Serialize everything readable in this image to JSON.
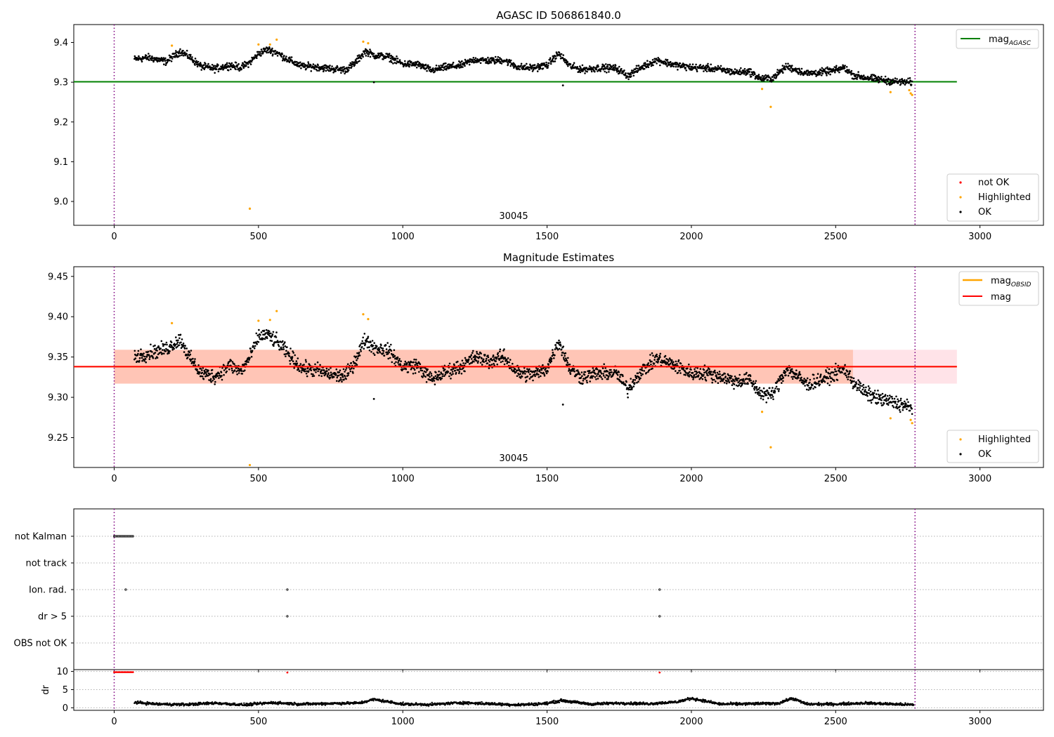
{
  "chart_data": [
    {
      "type": "scatter",
      "title": "AGASC ID 506861840.0",
      "xlim": [
        -140,
        3220
      ],
      "ylim": [
        8.94,
        9.445
      ],
      "xticks": [
        0,
        500,
        1000,
        1500,
        2000,
        2500,
        3000
      ],
      "yticks": [
        9.0,
        9.1,
        9.2,
        9.3,
        9.4
      ],
      "ytick_labels": [
        "9.0",
        "9.1",
        "9.2",
        "9.3",
        "9.4"
      ],
      "annotation": "30045",
      "annotation_x": 1380,
      "vlines": [
        0,
        2775
      ],
      "hline": {
        "name": "mag_AGASC",
        "y": 9.301,
        "x": [
          0,
          2920
        ],
        "color": "#008000"
      },
      "legend_upper": {
        "location": "upper right",
        "entries": [
          {
            "label": "mag",
            "subscript": "AGASC",
            "color": "#008000"
          }
        ]
      },
      "legend_lower": {
        "location": "lower right",
        "entries": [
          {
            "label": "not OK",
            "color": "#ff0000"
          },
          {
            "label": "Highlighted",
            "color": "#ffa500"
          },
          {
            "label": "OK",
            "color": "#000000"
          }
        ]
      },
      "series": [
        {
          "name": "OK",
          "color": "#000000",
          "x": [
            70,
            120,
            180,
            230,
            260,
            300,
            350,
            400,
            440,
            470,
            500,
            530,
            560,
            600,
            650,
            700,
            750,
            800,
            830,
            870,
            900,
            950,
            1000,
            1050,
            1100,
            1150,
            1200,
            1250,
            1300,
            1350,
            1400,
            1450,
            1500,
            1540,
            1580,
            1620,
            1680,
            1740,
            1780,
            1820,
            1880,
            1940,
            2000,
            2050,
            2100,
            2150,
            2200,
            2240,
            2280,
            2330,
            2360,
            2400,
            2450,
            2500,
            2530,
            2560,
            2600,
            2650,
            2700,
            2740,
            2765
          ],
          "y": [
            9.358,
            9.362,
            9.352,
            9.378,
            9.364,
            9.34,
            9.334,
            9.343,
            9.337,
            9.35,
            9.372,
            9.382,
            9.376,
            9.358,
            9.34,
            9.339,
            9.334,
            9.331,
            9.345,
            9.378,
            9.368,
            9.364,
            9.346,
            9.345,
            9.33,
            9.338,
            9.342,
            9.357,
            9.354,
            9.356,
            9.338,
            9.336,
            9.343,
            9.372,
            9.34,
            9.332,
            9.336,
            9.335,
            9.316,
            9.335,
            9.356,
            9.344,
            9.337,
            9.336,
            9.332,
            9.325,
            9.327,
            9.309,
            9.31,
            9.34,
            9.332,
            9.322,
            9.325,
            9.33,
            9.337,
            9.318,
            9.312,
            9.307,
            9.302,
            9.3,
            9.3
          ],
          "isolated_points": [
            {
              "x": 470,
              "y": 8.982
            },
            {
              "x": 900,
              "y": 9.3
            },
            {
              "x": 1555,
              "y": 9.292
            }
          ]
        },
        {
          "name": "Highlighted",
          "color": "#ffa500",
          "points": [
            {
              "x": 470,
              "y": 8.982
            },
            {
              "x": 500,
              "y": 9.395
            },
            {
              "x": 540,
              "y": 9.395
            },
            {
              "x": 563,
              "y": 9.407
            },
            {
              "x": 863,
              "y": 9.402
            },
            {
              "x": 880,
              "y": 9.398
            },
            {
              "x": 200,
              "y": 9.392
            },
            {
              "x": 2245,
              "y": 9.283
            },
            {
              "x": 2275,
              "y": 9.238
            },
            {
              "x": 2690,
              "y": 9.275
            },
            {
              "x": 2755,
              "y": 9.28
            },
            {
              "x": 2760,
              "y": 9.272
            },
            {
              "x": 2765,
              "y": 9.268
            }
          ]
        }
      ]
    },
    {
      "type": "scatter",
      "title": "Magnitude Estimates",
      "xlim": [
        -140,
        3220
      ],
      "ylim": [
        9.213,
        9.462
      ],
      "xticks": [
        0,
        500,
        1000,
        1500,
        2000,
        2500,
        3000
      ],
      "yticks": [
        9.25,
        9.3,
        9.35,
        9.4,
        9.45
      ],
      "ytick_labels": [
        "9.25",
        "9.30",
        "9.35",
        "9.40",
        "9.45"
      ],
      "annotation": "30045",
      "annotation_x": 1380,
      "vlines": [
        0,
        2775
      ],
      "bands": [
        {
          "name": "mag band",
          "x": [
            0,
            2920
          ],
          "y": [
            9.317,
            9.359
          ],
          "color": "#ffc0cb"
        },
        {
          "name": "mag_OBSID band",
          "x": [
            0,
            2560
          ],
          "y": [
            9.317,
            9.359
          ],
          "color": "#ffa07a"
        }
      ],
      "hlines": [
        {
          "name": "mag_OBSID",
          "y": 9.338,
          "x": [
            0,
            2920
          ],
          "color": "#ffa500"
        },
        {
          "name": "mag",
          "y": 9.338,
          "x": [
            0,
            2920
          ],
          "color": "#ff0000"
        }
      ],
      "legend_upper": {
        "location": "upper right",
        "entries": [
          {
            "label": "mag",
            "subscript": "OBSID",
            "color": "#ffa500"
          },
          {
            "label": "mag",
            "color": "#ff0000"
          }
        ]
      },
      "legend_lower": {
        "location": "lower right",
        "entries": [
          {
            "label": "Highlighted",
            "color": "#ffa500"
          },
          {
            "label": "OK",
            "color": "#000000"
          }
        ]
      },
      "series": [
        {
          "name": "OK",
          "color": "#000000",
          "x": [
            70,
            120,
            180,
            230,
            260,
            300,
            350,
            400,
            440,
            470,
            500,
            530,
            560,
            600,
            650,
            700,
            750,
            800,
            830,
            870,
            900,
            950,
            1000,
            1050,
            1100,
            1150,
            1200,
            1250,
            1300,
            1350,
            1400,
            1450,
            1500,
            1540,
            1580,
            1620,
            1680,
            1740,
            1780,
            1820,
            1880,
            1940,
            2000,
            2050,
            2100,
            2150,
            2200,
            2240,
            2280,
            2330,
            2360,
            2400,
            2450,
            2500,
            2530,
            2560,
            2600,
            2650,
            2700,
            2740,
            2765
          ],
          "y": [
            9.35,
            9.355,
            9.36,
            9.372,
            9.35,
            9.33,
            9.326,
            9.34,
            9.332,
            9.35,
            9.375,
            9.378,
            9.37,
            9.355,
            9.336,
            9.334,
            9.328,
            9.326,
            9.342,
            9.372,
            9.362,
            9.358,
            9.338,
            9.34,
            9.322,
            9.332,
            9.338,
            9.35,
            9.345,
            9.35,
            9.33,
            9.328,
            9.336,
            9.37,
            9.335,
            9.325,
            9.33,
            9.33,
            9.31,
            9.33,
            9.348,
            9.34,
            9.33,
            9.33,
            9.326,
            9.32,
            9.322,
            9.305,
            9.303,
            9.336,
            9.328,
            9.316,
            9.322,
            9.33,
            9.335,
            9.32,
            9.306,
            9.298,
            9.294,
            9.29,
            9.285
          ],
          "isolated_points": [
            {
              "x": 900,
              "y": 9.298
            },
            {
              "x": 1555,
              "y": 9.291
            }
          ]
        },
        {
          "name": "Highlighted",
          "color": "#ffa500",
          "points": [
            {
              "x": 200,
              "y": 9.392
            },
            {
              "x": 500,
              "y": 9.395
            },
            {
              "x": 540,
              "y": 9.396
            },
            {
              "x": 563,
              "y": 9.407
            },
            {
              "x": 863,
              "y": 9.403
            },
            {
              "x": 880,
              "y": 9.397
            },
            {
              "x": 470,
              "y": 9.216
            },
            {
              "x": 2245,
              "y": 9.282
            },
            {
              "x": 2275,
              "y": 9.238
            },
            {
              "x": 2690,
              "y": 9.274
            },
            {
              "x": 2760,
              "y": 9.272
            },
            {
              "x": 2765,
              "y": 9.268
            }
          ]
        }
      ]
    },
    {
      "type": "scatter",
      "title": "",
      "xlim": [
        -140,
        3220
      ],
      "categories": [
        "not Kalman",
        "not track",
        "Ion. rad.",
        "dr > 5",
        "OBS not OK"
      ],
      "xticks": [
        0,
        500,
        1000,
        1500,
        2000,
        2500,
        3000
      ],
      "vlines": [
        0,
        2775
      ],
      "flags": [
        {
          "category": "not Kalman",
          "x": [
            0,
            5,
            10,
            15,
            20,
            25,
            30,
            35,
            40,
            45,
            50,
            55,
            60,
            65
          ]
        },
        {
          "category": "not track",
          "x": []
        },
        {
          "category": "Ion. rad.",
          "x": [
            40,
            600,
            1890
          ]
        },
        {
          "category": "dr > 5",
          "x": [
            600,
            1890
          ]
        },
        {
          "category": "OBS not OK",
          "x": []
        }
      ]
    },
    {
      "type": "scatter",
      "title": "",
      "ylabel": "dr",
      "xlim": [
        -140,
        3220
      ],
      "ylim": [
        -0.7,
        10.5
      ],
      "yticks": [
        0,
        5,
        10
      ],
      "xticks": [
        0,
        500,
        1000,
        1500,
        2000,
        2500,
        3000
      ],
      "vlines": [
        0,
        2775
      ],
      "series": [
        {
          "name": "dr",
          "color": "#000000",
          "x": [
            70,
            150,
            250,
            350,
            450,
            550,
            650,
            750,
            850,
            900,
            1000,
            1100,
            1200,
            1300,
            1400,
            1500,
            1550,
            1650,
            1750,
            1850,
            1950,
            2000,
            2100,
            2200,
            2300,
            2350,
            2400,
            2500,
            2600,
            2700,
            2770
          ],
          "y": [
            1.5,
            1.0,
            0.9,
            1.3,
            0.8,
            1.4,
            1.0,
            1.2,
            1.3,
            2.3,
            1.0,
            0.9,
            1.4,
            1.1,
            0.8,
            1.2,
            2.0,
            1.0,
            1.3,
            1.1,
            1.6,
            2.6,
            1.0,
            1.1,
            1.2,
            2.6,
            1.0,
            1.0,
            1.3,
            1.0,
            0.8
          ]
        },
        {
          "name": "dr > 5",
          "color": "#ff0000",
          "x": [
            0,
            5,
            10,
            15,
            20,
            25,
            30,
            35,
            40,
            45,
            50,
            55,
            60,
            65,
            600,
            1890
          ],
          "y": [
            9.8,
            9.8,
            9.8,
            9.8,
            9.8,
            9.8,
            9.8,
            9.8,
            9.8,
            9.8,
            9.8,
            9.8,
            9.8,
            9.8,
            9.7,
            9.7
          ]
        }
      ]
    }
  ]
}
